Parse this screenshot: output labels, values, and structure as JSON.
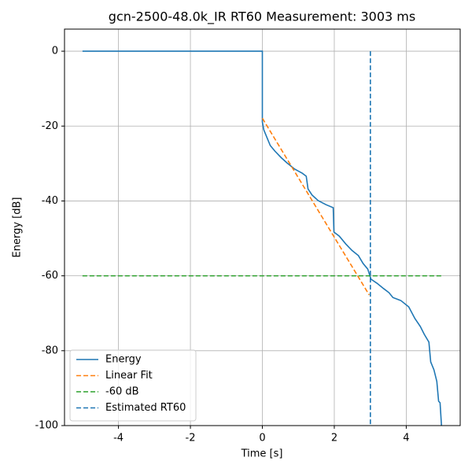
{
  "chart_data": {
    "type": "line",
    "title": "gcn-2500-48.0k_IR RT60 Measurement: 3003 ms",
    "x_label": "Time [s]",
    "y_label": "Energy [dB]",
    "xlim": [
      -5.5,
      5.5
    ],
    "ylim": [
      -100,
      5.9
    ],
    "xticks": [
      -4,
      -2,
      0,
      2,
      4
    ],
    "yticks": [
      -100,
      -80,
      -60,
      -40,
      -20,
      0
    ],
    "grid": true,
    "legend": "lower-left",
    "series": [
      {
        "name": "Energy",
        "color": "#1f77b4",
        "dash": false,
        "x": [
          -5,
          0,
          0,
          0.04,
          0.13,
          0.22,
          0.35,
          0.52,
          0.68,
          0.9,
          1.11,
          1.22,
          1.27,
          1.38,
          1.55,
          1.77,
          1.97,
          1.99,
          2.14,
          2.32,
          2.49,
          2.67,
          2.8,
          2.93,
          3.02,
          3.19,
          3.37,
          3.52,
          3.63,
          3.85,
          4.07,
          4.24,
          4.39,
          4.5,
          4.63,
          4.68,
          4.77,
          4.85,
          4.9,
          4.94,
          4.98
        ],
        "values": [
          0,
          0,
          -18.9,
          -21,
          -23.1,
          -25.2,
          -26.7,
          -28.4,
          -29.8,
          -31.5,
          -32.6,
          -33.4,
          -36.8,
          -38.4,
          -39.9,
          -41,
          -41.8,
          -48.3,
          -49.4,
          -51.5,
          -53.2,
          -54.6,
          -56.7,
          -58.2,
          -60.9,
          -62,
          -63.4,
          -64.5,
          -65.8,
          -66.6,
          -68.3,
          -71.4,
          -73.5,
          -75.6,
          -77.7,
          -83,
          -85.1,
          -88.2,
          -93.5,
          -93.9,
          -100
        ]
      },
      {
        "name": "Linear Fit",
        "color": "#ff7f0e",
        "dash": true,
        "x": [
          0,
          2.97
        ],
        "values": [
          -17.9,
          -65.1
        ]
      },
      {
        "name": "-60 dB",
        "color": "#2ca02c",
        "dash": true,
        "x": [
          -5,
          5
        ],
        "values": [
          -60,
          -60
        ]
      },
      {
        "name": "Estimated RT60",
        "color": "#1f77b4",
        "dash": true,
        "x": [
          3.003,
          3.003
        ],
        "values": [
          0,
          -100
        ]
      }
    ]
  }
}
